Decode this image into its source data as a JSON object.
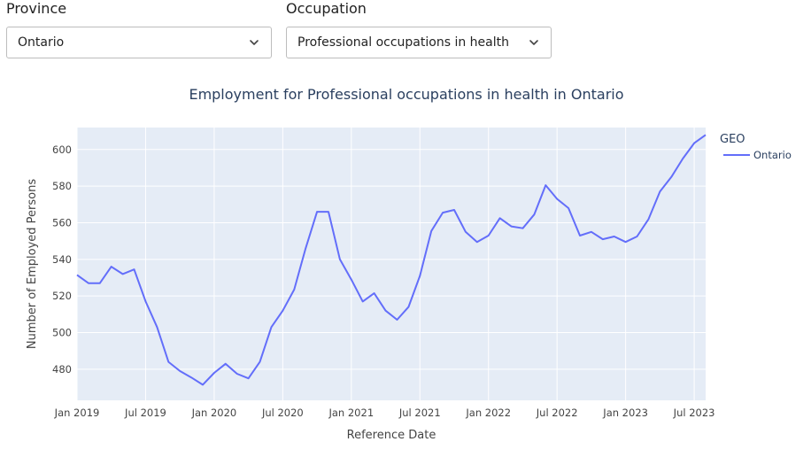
{
  "filters": {
    "province": {
      "label": "Province",
      "value": "Ontario"
    },
    "occupation": {
      "label": "Occupation",
      "value": "Professional occupations in health"
    }
  },
  "icons": {
    "dropdown": "chevron-down-icon"
  },
  "colors": {
    "plot_bg": "#e5ecf6",
    "series": "#636efa",
    "grid": "#ffffff",
    "title": "#2a3f5f"
  },
  "chart_data": {
    "type": "line",
    "title": "Employment for Professional occupations in health in Ontario",
    "xlabel": "Reference Date",
    "ylabel": "Number of Employed Persons",
    "x_tick_labels": [
      "Jan 2019",
      "Jul 2019",
      "Jan 2020",
      "Jul 2020",
      "Jan 2021",
      "Jul 2021",
      "Jan 2022",
      "Jul 2022",
      "Jan 2023",
      "Jul 2023"
    ],
    "y_ticks": [
      480,
      500,
      520,
      540,
      560,
      580,
      600
    ],
    "ylim": [
      463,
      612
    ],
    "xlim": [
      "2019-01",
      "2023-08"
    ],
    "grid": true,
    "legend": {
      "title": "GEO",
      "placement": "top-right"
    },
    "x": [
      "2019-01",
      "2019-02",
      "2019-03",
      "2019-04",
      "2019-05",
      "2019-06",
      "2019-07",
      "2019-08",
      "2019-09",
      "2019-10",
      "2019-11",
      "2019-12",
      "2020-01",
      "2020-02",
      "2020-03",
      "2020-04",
      "2020-05",
      "2020-06",
      "2020-07",
      "2020-08",
      "2020-09",
      "2020-10",
      "2020-11",
      "2020-12",
      "2021-01",
      "2021-02",
      "2021-03",
      "2021-04",
      "2021-05",
      "2021-06",
      "2021-07",
      "2021-08",
      "2021-09",
      "2021-10",
      "2021-11",
      "2021-12",
      "2022-01",
      "2022-02",
      "2022-03",
      "2022-04",
      "2022-05",
      "2022-06",
      "2022-07",
      "2022-08",
      "2022-09",
      "2022-10",
      "2022-11",
      "2022-12",
      "2023-01",
      "2023-02",
      "2023-03",
      "2023-04",
      "2023-05",
      "2023-06",
      "2023-07",
      "2023-08"
    ],
    "series": [
      {
        "name": "Ontario",
        "values": [
          531.5,
          527,
          527,
          536,
          532,
          534.5,
          517,
          503,
          484,
          479,
          475.5,
          471.5,
          478,
          483,
          477.5,
          475,
          484,
          503,
          512,
          523.5,
          546,
          566,
          566,
          540,
          529,
          517,
          521.5,
          512,
          507,
          514,
          531,
          555.5,
          565.5,
          567,
          555,
          549.5,
          553,
          562.5,
          558,
          557,
          564.5,
          580.5,
          573,
          568,
          553,
          555,
          551,
          552.5,
          549.5,
          552.5,
          562,
          577,
          585,
          595,
          603.5,
          608
        ]
      }
    ]
  }
}
